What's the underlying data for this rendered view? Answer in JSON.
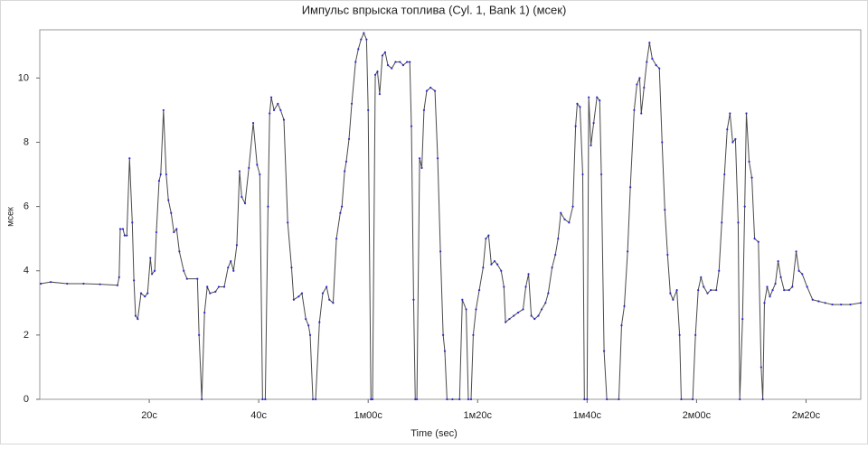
{
  "chart_data": {
    "type": "line",
    "title": "Импульс впрыска топлива (Cyl. 1, Bank 1) (мсек)",
    "x_label": "Time (sec)",
    "y_label": "мсек",
    "xlim": [
      0,
      150
    ],
    "ylim": [
      0,
      11.5
    ],
    "xticks": [
      {
        "value": 20,
        "label": "20с"
      },
      {
        "value": 40,
        "label": "40с"
      },
      {
        "value": 60,
        "label": "1м00с"
      },
      {
        "value": 80,
        "label": "1м20с"
      },
      {
        "value": 100,
        "label": "1м40с"
      },
      {
        "value": 120,
        "label": "2м00с"
      },
      {
        "value": 140,
        "label": "2м20с"
      }
    ],
    "yticks": [
      0,
      2,
      4,
      6,
      8,
      10
    ],
    "grid": false,
    "marker_color": "#2a2ad0",
    "x": [
      0.2,
      2,
      5,
      8,
      11,
      14.2,
      14.5,
      14.7,
      15.2,
      15.5,
      15.9,
      16.4,
      16.9,
      17.2,
      17.5,
      17.9,
      18.5,
      19.2,
      19.7,
      20.2,
      20.5,
      21,
      21.3,
      21.8,
      22.1,
      22.6,
      23.1,
      23.5,
      24,
      24.5,
      25,
      25.5,
      26.3,
      26.9,
      28.8,
      29.1,
      29.6,
      30.1,
      30.6,
      31.1,
      32.1,
      32.7,
      33.7,
      34.4,
      34.9,
      35.4,
      36,
      36.5,
      36.9,
      37.5,
      38.2,
      39,
      39.7,
      40.2,
      40.7,
      41.2,
      41.7,
      42,
      42.3,
      42.8,
      43.5,
      44,
      44.6,
      45.3,
      46,
      46.4,
      47.3,
      47.9,
      48.6,
      49.1,
      49.4,
      49.9,
      50.4,
      51.1,
      51.7,
      52.4,
      52.9,
      53.6,
      54.2,
      54.9,
      55.2,
      55.7,
      56,
      56.5,
      57,
      57.7,
      58.2,
      58.7,
      59.2,
      59.7,
      60,
      60.5,
      60.8,
      61.3,
      61.7,
      62.1,
      62.6,
      63.1,
      63.6,
      64.3,
      65,
      65.8,
      66.4,
      67.1,
      67.6,
      67.9,
      68.3,
      68.6,
      68.9,
      69.4,
      69.8,
      70.2,
      70.7,
      71.4,
      72.2,
      72.7,
      73.2,
      73.7,
      74,
      74.4,
      75.4,
      76.7,
      77.2,
      77.9,
      78.3,
      78.8,
      79.2,
      79.7,
      80.3,
      81,
      81.5,
      82,
      82.5,
      83.1,
      83.6,
      84.3,
      84.8,
      85.1,
      85.8,
      86.6,
      87.4,
      88.3,
      88.8,
      89.3,
      89.8,
      90.4,
      91.1,
      91.7,
      92.4,
      92.9,
      93.6,
      94.2,
      94.7,
      95.2,
      95.9,
      96.7,
      97.4,
      97.9,
      98.2,
      98.7,
      99.2,
      99.5,
      100,
      100.3,
      100.7,
      101.2,
      101.8,
      102.3,
      102.6,
      103.1,
      103.6,
      105.8,
      106.3,
      106.8,
      107.4,
      107.9,
      108.6,
      109.1,
      109.6,
      109.9,
      110.4,
      110.9,
      111.4,
      111.9,
      112.6,
      113.2,
      113.7,
      114.2,
      114.7,
      115.2,
      115.7,
      116.4,
      116.9,
      117.2,
      119.3,
      119.8,
      120.3,
      120.8,
      121.3,
      122,
      122.6,
      123.6,
      124.1,
      124.6,
      125.1,
      125.6,
      126.1,
      126.6,
      127.1,
      127.6,
      127.9,
      128.4,
      128.8,
      129.1,
      129.6,
      130.1,
      130.6,
      131.3,
      131.8,
      132.1,
      132.4,
      132.9,
      133.4,
      133.9,
      134.4,
      134.9,
      135.4,
      136,
      136.9,
      137.5,
      138.2,
      138.7,
      139.3,
      140.2,
      141.2,
      142.3,
      143.5,
      144.8,
      146.4,
      148.1,
      150
    ],
    "series": [
      {
        "name": "Импульс впрыска топлива (Cyl. 1, Bank 1)",
        "color": "#4a4a4a",
        "values": [
          3.6,
          3.65,
          3.6,
          3.6,
          3.58,
          3.55,
          3.8,
          5.3,
          5.3,
          5.1,
          5.1,
          7.5,
          5.5,
          3.7,
          2.6,
          2.5,
          3.3,
          3.2,
          3.3,
          4.4,
          3.9,
          4.0,
          5.2,
          6.8,
          7.0,
          9.0,
          7.0,
          6.2,
          5.8,
          5.2,
          5.3,
          4.6,
          4.0,
          3.75,
          3.75,
          2.0,
          0,
          2.7,
          3.5,
          3.3,
          3.35,
          3.5,
          3.5,
          4.1,
          4.3,
          4.0,
          4.8,
          7.1,
          6.3,
          6.1,
          7.2,
          8.6,
          7.3,
          7.0,
          0,
          0,
          6.0,
          8.9,
          9.4,
          9.0,
          9.2,
          9.0,
          8.7,
          5.5,
          4.1,
          3.1,
          3.2,
          3.3,
          2.5,
          2.3,
          2.0,
          0,
          0,
          2.4,
          3.3,
          3.5,
          3.1,
          3.0,
          5.0,
          5.8,
          6.0,
          7.1,
          7.4,
          8.1,
          9.2,
          10.5,
          10.9,
          11.2,
          11.4,
          11.2,
          9.0,
          0,
          0,
          10.1,
          10.2,
          9.5,
          10.7,
          10.8,
          10.4,
          10.3,
          10.5,
          10.5,
          10.4,
          10.5,
          10.5,
          8.5,
          3.1,
          0,
          0,
          7.5,
          7.2,
          9.0,
          9.6,
          9.7,
          9.6,
          7.5,
          4.6,
          2.0,
          1.5,
          0,
          0,
          0,
          3.1,
          2.8,
          0,
          0,
          2.0,
          2.8,
          3.4,
          4.1,
          5.0,
          5.1,
          4.2,
          4.3,
          4.2,
          4.0,
          3.5,
          2.4,
          2.5,
          2.6,
          2.7,
          2.8,
          3.5,
          3.9,
          2.6,
          2.5,
          2.6,
          2.8,
          3.0,
          3.3,
          4.1,
          4.5,
          5.0,
          5.8,
          5.6,
          5.5,
          6.0,
          8.5,
          9.2,
          9.1,
          7.0,
          0,
          0,
          9.4,
          7.9,
          8.6,
          9.4,
          9.3,
          7.0,
          1.5,
          0,
          0,
          2.3,
          2.9,
          4.6,
          6.6,
          9.0,
          9.8,
          10.0,
          8.9,
          9.7,
          10.5,
          11.1,
          10.6,
          10.4,
          10.3,
          8.0,
          5.9,
          4.5,
          3.3,
          3.1,
          3.4,
          2.0,
          0,
          0,
          2.0,
          3.4,
          3.8,
          3.5,
          3.3,
          3.4,
          3.4,
          4.0,
          5.5,
          7.0,
          8.4,
          8.9,
          8.0,
          8.1,
          5.5,
          0,
          2.5,
          6.0,
          8.9,
          7.4,
          6.9,
          5.0,
          4.9,
          1.0,
          0,
          3.0,
          3.5,
          3.2,
          3.4,
          3.6,
          4.3,
          3.8,
          3.4,
          3.4,
          3.5,
          4.6,
          4.0,
          3.9,
          3.5,
          3.1,
          3.05,
          3.0,
          2.95,
          2.95,
          2.95,
          3.0
        ]
      }
    ]
  }
}
